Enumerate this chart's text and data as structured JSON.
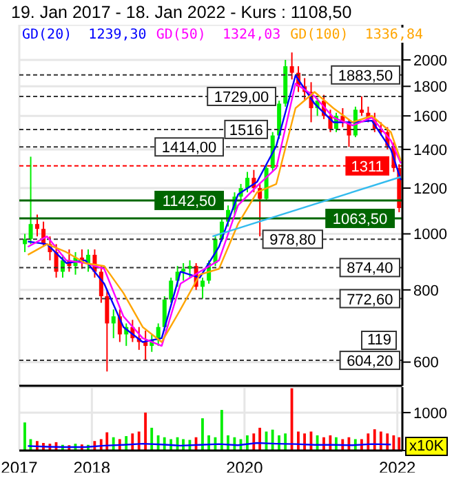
{
  "chart_data": [
    {
      "type": "candlestick",
      "title": "19. Jan 2017 - 18. Jan 2022 - Kurs : 1108,50",
      "log": "y",
      "grid": true,
      "tick_labels": "y",
      "legend": "top left",
      "xlim": [
        "2017-01-19",
        "2022-01-25"
      ],
      "xticks": [
        {
          "value": "2017-01-19",
          "label": null
        },
        {
          "value": "2018-01-01",
          "label": null
        },
        {
          "value": "2020-01-01",
          "label": null
        },
        {
          "value": "2022-01-01",
          "label": null
        }
      ],
      "annotations": [
        "1239,30",
        "1324,03",
        "1336,84",
        "119"
      ],
      "ylim": [
        546,
        2300
      ],
      "yticks": [
        600,
        800,
        1000,
        1200,
        1400,
        1600,
        1800,
        2000
      ],
      "x": [
        "2017-02-15",
        "2017-03-15",
        "2017-04-15",
        "2017-05-15",
        "2017-06-15",
        "2017-07-15",
        "2017-08-15",
        "2017-09-15",
        "2017-10-15",
        "2017-11-15",
        "2017-12-15",
        "2018-01-15",
        "2018-02-15",
        "2018-03-15",
        "2018-04-15",
        "2018-05-15",
        "2018-06-15",
        "2018-07-15",
        "2018-08-15",
        "2018-09-15",
        "2018-10-15",
        "2018-11-15",
        "2018-12-15",
        "2019-01-15",
        "2019-02-15",
        "2019-03-15",
        "2019-04-15",
        "2019-05-15",
        "2019-06-15",
        "2019-07-15",
        "2019-08-15",
        "2019-09-15",
        "2019-10-15",
        "2019-11-15",
        "2019-12-15",
        "2020-01-15",
        "2020-02-15",
        "2020-03-15",
        "2020-04-15",
        "2020-05-15",
        "2020-06-15",
        "2020-07-15",
        "2020-08-15",
        "2020-09-15",
        "2020-10-15",
        "2020-11-15",
        "2020-12-15",
        "2021-01-15",
        "2021-02-15",
        "2021-03-15",
        "2021-04-15",
        "2021-05-15",
        "2021-06-15",
        "2021-07-15",
        "2021-08-15",
        "2021-09-15",
        "2021-10-15",
        "2021-11-15",
        "2021-12-15",
        "2022-01-10"
      ],
      "ohlc": [
        [
          960,
          1000,
          930,
          980
        ],
        [
          980,
          1360,
          960,
          1040
        ],
        [
          1040,
          1080,
          990,
          1020
        ],
        [
          1020,
          1050,
          950,
          960
        ],
        [
          960,
          990,
          900,
          930
        ],
        [
          930,
          960,
          840,
          860
        ],
        [
          860,
          920,
          840,
          900
        ],
        [
          900,
          940,
          860,
          880
        ],
        [
          880,
          930,
          850,
          910
        ],
        [
          910,
          940,
          870,
          890
        ],
        [
          890,
          940,
          860,
          920
        ],
        [
          920,
          940,
          840,
          860
        ],
        [
          860,
          880,
          760,
          780
        ],
        [
          780,
          800,
          578,
          700
        ],
        [
          700,
          740,
          660,
          720
        ],
        [
          720,
          740,
          650,
          670
        ],
        [
          670,
          700,
          640,
          690
        ],
        [
          690,
          710,
          650,
          660
        ],
        [
          660,
          690,
          630,
          650
        ],
        [
          650,
          680,
          604.2,
          640
        ],
        [
          640,
          670,
          625,
          655
        ],
        [
          655,
          700,
          640,
          690
        ],
        [
          690,
          780,
          680,
          770
        ],
        [
          770,
          840,
          760,
          830
        ],
        [
          830,
          880,
          810,
          860
        ],
        [
          860,
          890,
          830,
          870
        ],
        [
          870,
          900,
          840,
          880
        ],
        [
          880,
          890,
          800,
          810
        ],
        [
          810,
          840,
          772.6,
          830
        ],
        [
          830,
          900,
          820,
          890
        ],
        [
          890,
          990,
          880,
          980
        ],
        [
          980,
          1060,
          970,
          1050
        ],
        [
          1050,
          1120,
          1030,
          1100
        ],
        [
          1100,
          1180,
          1080,
          1160
        ],
        [
          1160,
          1220,
          1140,
          1200
        ],
        [
          1200,
          1280,
          1180,
          1250
        ],
        [
          1250,
          1290,
          1180,
          1200
        ],
        [
          1200,
          1220,
          990,
          1150
        ],
        [
          1150,
          1320,
          1140,
          1300
        ],
        [
          1300,
          1500,
          1280,
          1480
        ],
        [
          1480,
          1700,
          1460,
          1680
        ],
        [
          1680,
          2000,
          1660,
          1950
        ],
        [
          1950,
          2060,
          1850,
          1900
        ],
        [
          1900,
          1950,
          1760,
          1800
        ],
        [
          1800,
          1860,
          1700,
          1760
        ],
        [
          1760,
          1830,
          1560,
          1650
        ],
        [
          1650,
          1720,
          1600,
          1700
        ],
        [
          1700,
          1740,
          1580,
          1600
        ],
        [
          1600,
          1640,
          1500,
          1520
        ],
        [
          1520,
          1620,
          1500,
          1600
        ],
        [
          1600,
          1650,
          1530,
          1560
        ],
        [
          1560,
          1580,
          1414,
          1480
        ],
        [
          1480,
          1660,
          1470,
          1640
        ],
        [
          1640,
          1729,
          1600,
          1620
        ],
        [
          1620,
          1660,
          1560,
          1580
        ],
        [
          1580,
          1620,
          1500,
          1520
        ],
        [
          1520,
          1560,
          1480,
          1500
        ],
        [
          1500,
          1530,
          1400,
          1420
        ],
        [
          1420,
          1440,
          1280,
          1300
        ],
        [
          1300,
          1320,
          1090,
          1108.5
        ]
      ],
      "colors": [
        "#00ee00",
        "#00ee00",
        "#ff0000",
        "#ff0000",
        "#ff0000",
        "#ff0000",
        "#00ee00",
        "#ff0000",
        "#00ee00",
        "#ff0000",
        "#00ee00",
        "#ff0000",
        "#ff0000",
        "#ff0000",
        "#00ee00",
        "#ff0000",
        "#00ee00",
        "#ff0000",
        "#ff0000",
        "#ff0000",
        "#00ee00",
        "#00ee00",
        "#00ee00",
        "#00ee00",
        "#00ee00",
        "#00ee00",
        "#00ee00",
        "#ff0000",
        "#00ee00",
        "#00ee00",
        "#00ee00",
        "#00ee00",
        "#00ee00",
        "#00ee00",
        "#00ee00",
        "#00ee00",
        "#ff0000",
        "#ff0000",
        "#00ee00",
        "#00ee00",
        "#00ee00",
        "#00ee00",
        "#ff0000",
        "#ff0000",
        "#ff0000",
        "#ff0000",
        "#00ee00",
        "#ff0000",
        "#ff0000",
        "#00ee00",
        "#ff0000",
        "#ff0000",
        "#00ee00",
        "#ff0000",
        "#ff0000",
        "#ff0000",
        "#ff0000",
        "#ff0000",
        "#ff0000",
        "#ff0000"
      ],
      "series": [
        {
          "type": "line",
          "name": "GD(20)",
          "color": "#0000ff",
          "x": [
            "2017-03-01",
            "2017-06-01",
            "2017-09-01",
            "2017-12-01",
            "2018-03-01",
            "2018-06-01",
            "2018-09-01",
            "2018-12-01",
            "2019-03-01",
            "2019-06-01",
            "2019-09-01",
            "2019-12-01",
            "2020-03-01",
            "2020-06-01",
            "2020-09-01",
            "2020-12-01",
            "2021-03-01",
            "2021-06-01",
            "2021-09-01",
            "2021-12-01",
            "2022-01-18"
          ],
          "values": [
            970,
            960,
            890,
            900,
            820,
            690,
            650,
            660,
            860,
            840,
            950,
            1170,
            1230,
            1420,
            1880,
            1680,
            1560,
            1560,
            1570,
            1400,
            1239.3
          ]
        },
        {
          "type": "line",
          "name": "GD(50)",
          "color": "#ff00ff",
          "x": [
            "2017-03-01",
            "2017-06-01",
            "2017-09-01",
            "2017-12-01",
            "2018-03-01",
            "2018-06-01",
            "2018-09-01",
            "2018-12-01",
            "2019-03-01",
            "2019-06-01",
            "2019-09-01",
            "2019-12-01",
            "2020-03-01",
            "2020-06-01",
            "2020-09-01",
            "2020-12-01",
            "2021-03-01",
            "2021-06-01",
            "2021-09-01",
            "2021-12-01",
            "2022-01-18"
          ],
          "values": [
            950,
            990,
            900,
            890,
            870,
            720,
            660,
            640,
            820,
            860,
            900,
            1120,
            1210,
            1300,
            1820,
            1730,
            1590,
            1540,
            1590,
            1450,
            1324.03
          ]
        },
        {
          "type": "line",
          "name": "GD(100)",
          "color": "#ffa500",
          "x": [
            "2017-03-01",
            "2017-06-01",
            "2017-09-01",
            "2017-12-01",
            "2018-03-01",
            "2018-06-01",
            "2018-09-01",
            "2018-12-01",
            "2019-03-01",
            "2019-06-01",
            "2019-09-01",
            "2019-12-01",
            "2020-03-01",
            "2020-06-01",
            "2020-09-01",
            "2020-12-01",
            "2021-03-01",
            "2021-06-01",
            "2021-09-01",
            "2021-12-01",
            "2022-01-18"
          ],
          "values": [
            920,
            960,
            930,
            890,
            880,
            790,
            690,
            650,
            740,
            850,
            870,
            1040,
            1180,
            1220,
            1650,
            1760,
            1650,
            1560,
            1600,
            1500,
            1336.84
          ]
        },
        {
          "type": "line",
          "color": "#33bbee",
          "x": [
            "2019-08-01",
            "2022-01-18"
          ],
          "values": [
            990,
            1255
          ]
        }
      ],
      "ref_lines": [
        {
          "axis": "y",
          "value": 1883.5,
          "label": "1883,50",
          "color": "#333333",
          "line_style": "dashed"
        },
        {
          "axis": "y",
          "value": 1729,
          "label": "1729,00",
          "color": "#333333",
          "line_style": "dashed"
        },
        {
          "axis": "y",
          "value": 1516,
          "label": "1516",
          "color": "#333333",
          "line_style": "dashed"
        },
        {
          "axis": "y",
          "value": 1414,
          "label": "1414,00",
          "color": "#333333",
          "line_style": "dashed"
        },
        {
          "axis": "y",
          "value": 1311,
          "label": "1311",
          "color": "#ff0000",
          "line_style": "dashed"
        },
        {
          "axis": "y",
          "value": 1142.5,
          "label": "1142,50",
          "color": "#006600",
          "line_style": "solid"
        },
        {
          "axis": "y",
          "value": 1063.5,
          "label": "1063,50",
          "color": "#006600",
          "line_style": "solid"
        },
        {
          "axis": "y",
          "value": 978.8,
          "label": "978,80",
          "color": "#333333",
          "line_style": "dashed"
        },
        {
          "axis": "y",
          "value": 874.4,
          "label": "874,40",
          "color": "#333333",
          "line_style": "dashed"
        },
        {
          "axis": "y",
          "value": 772.6,
          "label": "772,60",
          "color": "#333333",
          "line_style": "dashed"
        },
        {
          "axis": "y",
          "value": 604.2,
          "label": "604,20",
          "color": "#333333",
          "line_style": "dashed"
        }
      ]
    },
    {
      "type": "bar",
      "ylabel": "x10K",
      "grid": true,
      "xlim": [
        "2017-01-19",
        "2022-01-25"
      ],
      "xticks": [
        {
          "value": "2017-01-19",
          "label": "2017"
        },
        {
          "value": "2018-01-01",
          "label": "2018"
        },
        {
          "value": "2020-01-01",
          "label": "2020"
        },
        {
          "value": "2022-01-01",
          "label": "2022"
        }
      ],
      "ylim": [
        0,
        1670
      ],
      "yticks": [
        {
          "value": 0,
          "label": null
        },
        1000
      ],
      "x": [
        "2017-02-15",
        "2017-03-15",
        "2017-04-15",
        "2017-05-15",
        "2017-06-15",
        "2017-07-15",
        "2017-08-15",
        "2017-09-15",
        "2017-10-15",
        "2017-11-15",
        "2017-12-15",
        "2018-01-15",
        "2018-02-15",
        "2018-03-15",
        "2018-04-15",
        "2018-05-15",
        "2018-06-15",
        "2018-07-15",
        "2018-08-15",
        "2018-09-15",
        "2018-10-15",
        "2018-11-15",
        "2018-12-15",
        "2019-01-15",
        "2019-02-15",
        "2019-03-15",
        "2019-04-15",
        "2019-05-15",
        "2019-06-15",
        "2019-07-15",
        "2019-08-15",
        "2019-09-15",
        "2019-10-15",
        "2019-11-15",
        "2019-12-15",
        "2020-01-15",
        "2020-02-15",
        "2020-03-15",
        "2020-04-15",
        "2020-05-15",
        "2020-06-15",
        "2020-07-15",
        "2020-08-15",
        "2020-09-15",
        "2020-10-15",
        "2020-11-15",
        "2020-12-15",
        "2021-01-15",
        "2021-02-15",
        "2021-03-15",
        "2021-04-15",
        "2021-05-15",
        "2021-06-15",
        "2021-07-15",
        "2021-08-15",
        "2021-09-15",
        "2021-10-15",
        "2021-11-15",
        "2021-12-15",
        "2022-01-10"
      ],
      "series": [
        {
          "type": "bar",
          "values": [
            740,
            300,
            250,
            200,
            180,
            220,
            150,
            140,
            180,
            160,
            150,
            250,
            300,
            480,
            350,
            300,
            380,
            450,
            500,
            1000,
            600,
            400,
            350,
            300,
            350,
            300,
            280,
            350,
            850,
            400,
            350,
            1070,
            400,
            350,
            300,
            400,
            450,
            600,
            500,
            550,
            400,
            450,
            1640,
            500,
            450,
            500,
            400,
            350,
            400,
            350,
            300,
            350,
            300,
            300,
            450,
            560,
            500,
            450,
            400,
            350
          ],
          "colors": [
            "#00ee00",
            "#00ee00",
            "#ff0000",
            "#ff0000",
            "#ff0000",
            "#ff0000",
            "#00ee00",
            "#ff0000",
            "#00ee00",
            "#ff0000",
            "#00ee00",
            "#ff0000",
            "#ff0000",
            "#ff0000",
            "#00ee00",
            "#ff0000",
            "#00ee00",
            "#ff0000",
            "#ff0000",
            "#ff0000",
            "#00ee00",
            "#00ee00",
            "#00ee00",
            "#00ee00",
            "#00ee00",
            "#00ee00",
            "#00ee00",
            "#ff0000",
            "#00ee00",
            "#00ee00",
            "#00ee00",
            "#00ee00",
            "#00ee00",
            "#00ee00",
            "#00ee00",
            "#00ee00",
            "#ff0000",
            "#ff0000",
            "#00ee00",
            "#00ee00",
            "#00ee00",
            "#00ee00",
            "#ff0000",
            "#ff0000",
            "#ff0000",
            "#ff0000",
            "#00ee00",
            "#ff0000",
            "#ff0000",
            "#00ee00",
            "#ff0000",
            "#ff0000",
            "#00ee00",
            "#ff0000",
            "#ff0000",
            "#ff0000",
            "#ff0000",
            "#ff0000",
            "#ff0000",
            "#ff0000"
          ]
        },
        {
          "type": "line",
          "color": "#0000ff",
          "x": [
            "2017-03-01",
            "2017-06-01",
            "2017-09-01",
            "2017-12-01",
            "2018-03-01",
            "2018-06-01",
            "2018-09-01",
            "2018-12-01",
            "2019-03-01",
            "2019-06-01",
            "2019-09-01",
            "2019-12-01",
            "2020-03-01",
            "2020-06-01",
            "2020-09-01",
            "2020-12-01",
            "2021-03-01",
            "2021-06-01",
            "2021-09-01",
            "2021-12-01"
          ],
          "values": [
            120,
            100,
            90,
            90,
            130,
            150,
            180,
            160,
            130,
            150,
            170,
            140,
            200,
            180,
            170,
            150,
            150,
            140,
            170,
            160
          ]
        }
      ]
    }
  ]
}
